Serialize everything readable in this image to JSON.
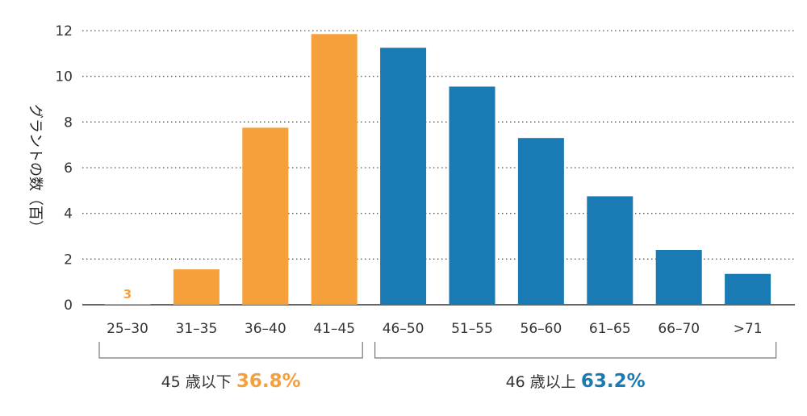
{
  "chart_data": {
    "type": "bar",
    "ylabel": "グラントの数（百）",
    "ylim": [
      0,
      12
    ],
    "yticks": [
      "0",
      "2",
      "4",
      "6",
      "8",
      "10",
      "12"
    ],
    "grid": "horizontal-dotted",
    "categories": [
      "25–30",
      "31–35",
      "36–40",
      "41–45",
      "46–50",
      "51–55",
      "56–60",
      "61–65",
      "66–70",
      ">71"
    ],
    "values": [
      0.03,
      1.55,
      7.75,
      11.85,
      11.25,
      9.55,
      7.3,
      4.75,
      2.4,
      1.35
    ],
    "colors": [
      "#f5a03a",
      "#f5a03a",
      "#f5a03a",
      "#f5a03a",
      "#1a7ab3",
      "#1a7ab3",
      "#1a7ab3",
      "#1a7ab3",
      "#1a7ab3",
      "#1a7ab3"
    ],
    "annotations": [
      {
        "category": "25–30",
        "text": "3",
        "color": "#f5a03a"
      }
    ],
    "groups": [
      {
        "label": "45 歳以下",
        "percent": "36.8%",
        "color": "#f5a03a",
        "start": 0,
        "end": 3
      },
      {
        "label": "46 歳以上",
        "percent": "63.2%",
        "color": "#1a7ab3",
        "start": 4,
        "end": 9
      }
    ]
  }
}
